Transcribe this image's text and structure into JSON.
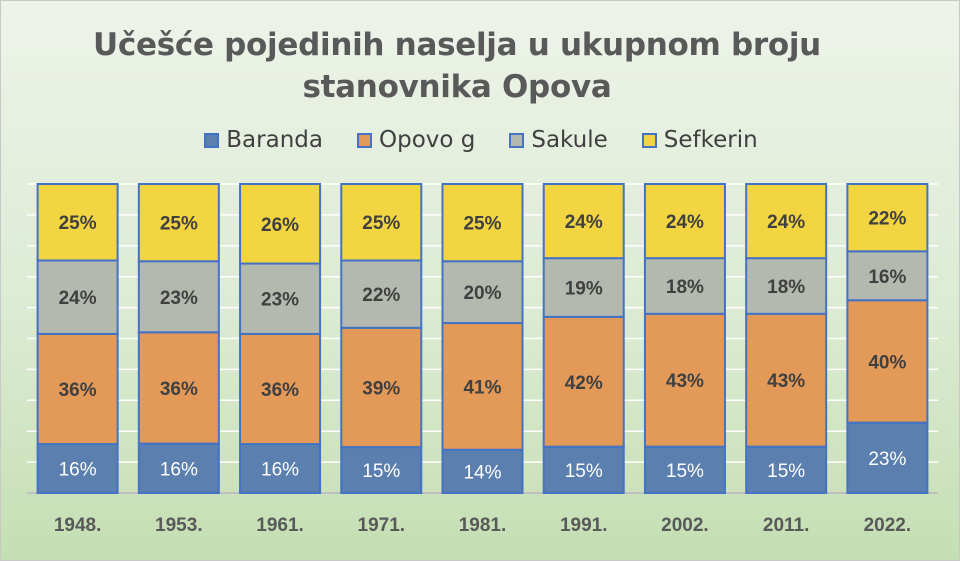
{
  "chart_data": {
    "type": "bar",
    "stacked": "100%",
    "title": [
      "Učešće pojedinih naselja u ukupnom broju",
      "stanovnika Opova"
    ],
    "categories": [
      "1948.",
      "1953.",
      "1961.",
      "1971.",
      "1981.",
      "1991.",
      "2002.",
      "2011.",
      "2022."
    ],
    "series": [
      {
        "name": "Baranda",
        "color": "#5b7fae",
        "label_color": "#ffffff",
        "values": [
          16,
          16,
          16,
          15,
          14,
          15,
          15,
          15,
          23
        ]
      },
      {
        "name": "Opovo g",
        "color": "#e39a58",
        "label_color": "#404040",
        "values": [
          36,
          36,
          36,
          39,
          41,
          42,
          43,
          43,
          40
        ]
      },
      {
        "name": "Sakule",
        "color": "#b3b9ae",
        "label_color": "#404040",
        "values": [
          24,
          23,
          23,
          22,
          20,
          19,
          18,
          18,
          16
        ]
      },
      {
        "name": "Sefkerin",
        "color": "#f3d542",
        "label_color": "#404040",
        "values": [
          25,
          25,
          26,
          25,
          25,
          24,
          24,
          24,
          22
        ]
      }
    ],
    "ylim": [
      0,
      100
    ],
    "grid": true,
    "legend": "top",
    "bar_border_color": "#4472c4"
  }
}
